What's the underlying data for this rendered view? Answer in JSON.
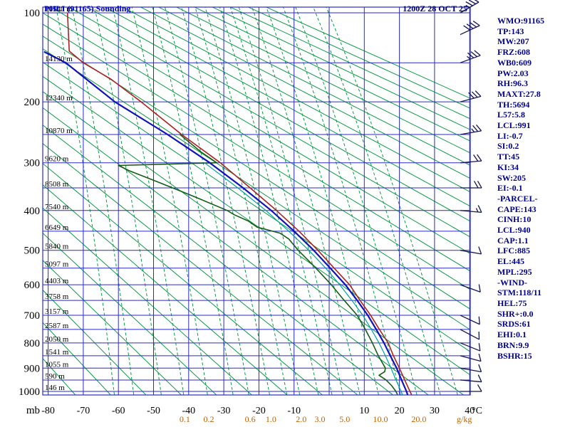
{
  "header": {
    "title": "PHLI (91165) Sounding",
    "datetime": "1200Z 28 OCT 25"
  },
  "axes": {
    "pressure_unit": "mb",
    "temp_unit": "°C",
    "mixing_unit": "g/kg",
    "pressure_labels": [
      100,
      200,
      300,
      400,
      500,
      600,
      700,
      800,
      900,
      1000
    ],
    "temp_ticks": [
      -80,
      -70,
      -60,
      -50,
      -40,
      -30,
      -20,
      -10,
      10,
      20,
      30,
      40
    ],
    "height_labels": [
      {
        "p": 100,
        "h": "16540 m"
      },
      {
        "p": 150,
        "h": "14130 m"
      },
      {
        "p": 200,
        "h": "12340 m"
      },
      {
        "p": 250,
        "h": "10870 m"
      },
      {
        "p": 300,
        "h": "9620 m"
      },
      {
        "p": 350,
        "h": "8508 m"
      },
      {
        "p": 400,
        "h": "7540 m"
      },
      {
        "p": 450,
        "h": "6649 m"
      },
      {
        "p": 500,
        "h": "5840 m"
      },
      {
        "p": 550,
        "h": "5097 m"
      },
      {
        "p": 600,
        "h": "4403 m"
      },
      {
        "p": 650,
        "h": "3758 m"
      },
      {
        "p": 700,
        "h": "3157 m"
      },
      {
        "p": 750,
        "h": "2587 m"
      },
      {
        "p": 800,
        "h": "2050 m"
      },
      {
        "p": 850,
        "h": "1541 m"
      },
      {
        "p": 900,
        "h": "1055 m"
      },
      {
        "p": 950,
        "h": "590 m"
      },
      {
        "p": 1000,
        "h": "146 m"
      }
    ]
  },
  "panel": {
    "lines": [
      "WMO:91165",
      "TP:143",
      "MW:207",
      "FRZ:608",
      "WB0:609",
      "PW:2.03",
      "RH:96.3",
      "MAXT:27.8",
      "TH:5694",
      "L57:5.8",
      "LCL:991",
      "LI:-0.7",
      "SI:0.2",
      "TT:45",
      "KI:34",
      "SW:205",
      "EI:-0.1",
      "-PARCEL-",
      "CAPE:143",
      "CINH:10",
      "LCL:940",
      "CAP:1.1",
      "LFC:885",
      "EL:445",
      "MPL:295",
      "-WIND-",
      "STM:118/11",
      "HEL:75",
      "SHR+:0.0",
      "SRDS:61",
      "EHI:0.1",
      "BRN:9.9",
      "BSHR:15"
    ]
  },
  "colors": {
    "grid_blue": "#2a2ac8",
    "adiabat_green": "#0c9b45",
    "mixing_green": "#0c9b45",
    "barb": "#141452",
    "mixing_label_orange": "#c06000"
  },
  "chart_data": {
    "type": "line",
    "subtype": "stuve-sounding",
    "title": "PHLI (91165) Sounding",
    "time": "1200Z 28 OCT 25",
    "pressure_range_mb": [
      95,
      1015
    ],
    "temp_range_c": [
      -81,
      40
    ],
    "isobars_mb": {
      "min": 100,
      "max": 1000,
      "step": 50
    },
    "isotherms_c": {
      "min": -80,
      "max": 40,
      "step": 10
    },
    "dry_adiabats_theta_k": {
      "min": 190,
      "max": 500,
      "step": 10
    },
    "mixing_ratio_lines_gkg": [
      0.01,
      0.02,
      0.05,
      0.1,
      0.2,
      0.4,
      0.6,
      1,
      1.5,
      2,
      3,
      4,
      5,
      7,
      10,
      15,
      20,
      30,
      40
    ],
    "mixing_ratio_labeled_gkg": [
      0.1,
      0.2,
      0.6,
      1,
      2,
      3,
      5,
      10,
      20
    ],
    "series": [
      {
        "name": "temperature",
        "color": "#aa2222",
        "width": 1.6,
        "points": [
          [
            1013,
            23.4
          ],
          [
            1000,
            23
          ],
          [
            950,
            21.5
          ],
          [
            900,
            20
          ],
          [
            850,
            18.3
          ],
          [
            800,
            16.8
          ],
          [
            750,
            14.3
          ],
          [
            700,
            11.8
          ],
          [
            650,
            8.8
          ],
          [
            600,
            5.8
          ],
          [
            550,
            1.4
          ],
          [
            500,
            -3.2
          ],
          [
            450,
            -8.6
          ],
          [
            400,
            -15
          ],
          [
            350,
            -22.5
          ],
          [
            300,
            -31
          ],
          [
            250,
            -42
          ],
          [
            200,
            -53.5
          ],
          [
            170,
            -62
          ],
          [
            150,
            -70
          ],
          [
            137,
            -74
          ],
          [
            100,
            -74.5
          ]
        ]
      },
      {
        "name": "dewpoint",
        "color": "#155c15",
        "width": 1.6,
        "points": [
          [
            1013,
            19.4
          ],
          [
            1000,
            19
          ],
          [
            975,
            17.8
          ],
          [
            950,
            16.2
          ],
          [
            930,
            14.2
          ],
          [
            915,
            15.8
          ],
          [
            900,
            16
          ],
          [
            850,
            14
          ],
          [
            800,
            12.3
          ],
          [
            750,
            10.3
          ],
          [
            700,
            8
          ],
          [
            650,
            4.3
          ],
          [
            600,
            0.6
          ],
          [
            550,
            -3.8
          ],
          [
            500,
            -8.8
          ],
          [
            470,
            -11.5
          ],
          [
            455,
            -14
          ],
          [
            440,
            -20.5
          ],
          [
            425,
            -23
          ],
          [
            410,
            -27
          ],
          [
            400,
            -29
          ],
          [
            370,
            -38
          ],
          [
            340,
            -48
          ],
          [
            315,
            -57
          ],
          [
            305,
            -60
          ],
          [
            300,
            -32
          ],
          [
            280,
            -36.5
          ],
          [
            250,
            -42.5
          ]
        ]
      },
      {
        "name": "wetbulb",
        "color": "#00a0a0",
        "width": 1.2,
        "points": [
          [
            1013,
            20.8
          ],
          [
            1000,
            20.5
          ],
          [
            950,
            19
          ],
          [
            900,
            17.6
          ],
          [
            850,
            16
          ],
          [
            800,
            14.2
          ],
          [
            750,
            12
          ],
          [
            700,
            9.6
          ],
          [
            650,
            6.5
          ],
          [
            600,
            3
          ],
          [
            550,
            -1
          ],
          [
            500,
            -5.8
          ],
          [
            450,
            -11.5
          ],
          [
            400,
            -18
          ],
          [
            350,
            -26
          ],
          [
            300,
            -35.5
          ]
        ]
      },
      {
        "name": "parcel",
        "color": "#1111bb",
        "width": 2.2,
        "points": [
          [
            1013,
            22.3
          ],
          [
            1000,
            22
          ],
          [
            950,
            20.6
          ],
          [
            900,
            19.2
          ],
          [
            850,
            17.4
          ],
          [
            800,
            15.6
          ],
          [
            750,
            13.4
          ],
          [
            700,
            11
          ],
          [
            650,
            8
          ],
          [
            600,
            4.6
          ],
          [
            550,
            0.3
          ],
          [
            500,
            -4.4
          ],
          [
            450,
            -10
          ],
          [
            400,
            -16.5
          ],
          [
            350,
            -24.5
          ],
          [
            300,
            -34
          ],
          [
            250,
            -46
          ],
          [
            200,
            -61
          ],
          [
            150,
            -75
          ],
          [
            138,
            -81
          ]
        ]
      }
    ],
    "winds": [
      {
        "p": 100,
        "dir": 60,
        "spd": 35
      },
      {
        "p": 120,
        "dir": 65,
        "spd": 40
      },
      {
        "p": 150,
        "dir": 70,
        "spd": 35
      },
      {
        "p": 200,
        "dir": 75,
        "spd": 30
      },
      {
        "p": 250,
        "dir": 80,
        "spd": 25
      },
      {
        "p": 300,
        "dir": 85,
        "spd": 20
      },
      {
        "p": 350,
        "dir": 90,
        "spd": 20
      },
      {
        "p": 400,
        "dir": 95,
        "spd": 15
      },
      {
        "p": 500,
        "dir": 100,
        "spd": 12
      },
      {
        "p": 600,
        "dir": 110,
        "spd": 10
      },
      {
        "p": 700,
        "dir": 115,
        "spd": 10
      },
      {
        "p": 750,
        "dir": 118,
        "spd": 11
      },
      {
        "p": 800,
        "dir": 112,
        "spd": 10
      },
      {
        "p": 850,
        "dir": 105,
        "spd": 10
      },
      {
        "p": 900,
        "dir": 100,
        "spd": 12
      },
      {
        "p": 950,
        "dir": 95,
        "spd": 10
      },
      {
        "p": 1000,
        "dir": 90,
        "spd": 8
      }
    ]
  }
}
